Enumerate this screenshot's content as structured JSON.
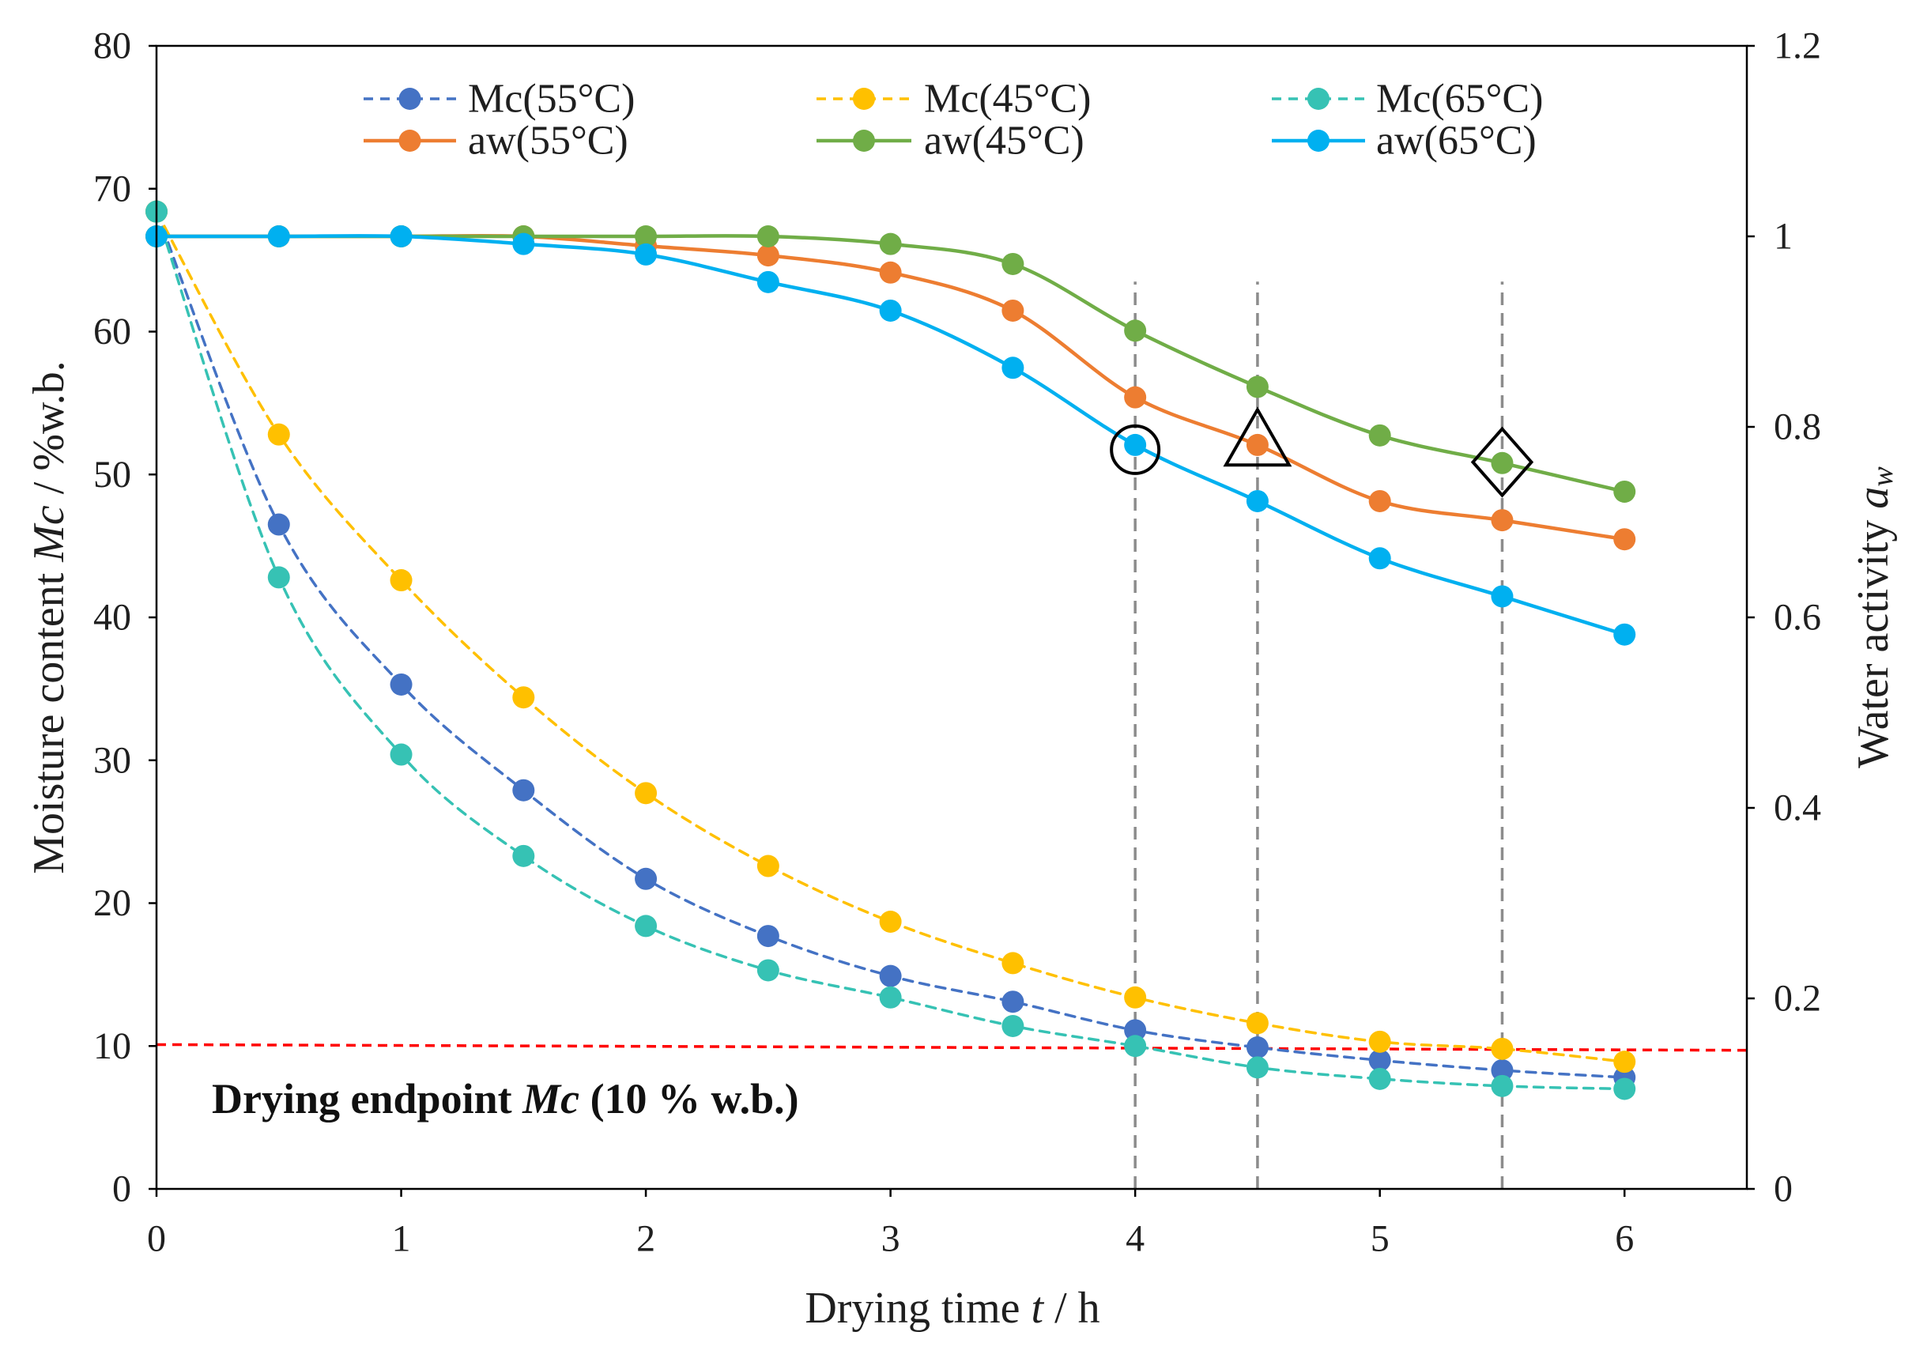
{
  "chart_data": {
    "type": "line",
    "x": [
      0,
      0.5,
      1,
      1.5,
      2,
      2.5,
      3,
      3.5,
      4,
      4.5,
      5,
      5.5,
      6
    ],
    "xlim": [
      0,
      6.5
    ],
    "ylim_left": [
      0,
      80
    ],
    "ylim_right": [
      0,
      1.2
    ],
    "grid": false,
    "legend_position": "top",
    "x_ticks": [
      "0",
      "1",
      "2",
      "3",
      "4",
      "5",
      "6"
    ],
    "y_left_ticks": [
      "0",
      "10",
      "20",
      "30",
      "40",
      "50",
      "60",
      "70",
      "80"
    ],
    "y_right_ticks": [
      "0",
      "0.2",
      "0.4",
      "0.6",
      "0.8",
      "1",
      "1.2"
    ],
    "xlabel": {
      "text": "Drying time ",
      "var": "t",
      "unit": " / h"
    },
    "ylabel_left": {
      "text": "Moisture content ",
      "var": "Mc",
      "unit": " / %w.b."
    },
    "ylabel_right": {
      "text": "Water activity ",
      "var": "a",
      "sub": "w"
    },
    "series": [
      {
        "name": "Mc(55°C)",
        "axis": "left",
        "line": "dashed",
        "color": "#4472C4",
        "values": [
          68.4,
          46.5,
          35.3,
          27.9,
          21.7,
          17.7,
          14.9,
          13.1,
          11.1,
          9.9,
          9.0,
          8.3,
          7.8
        ]
      },
      {
        "name": "Mc(45°C)",
        "axis": "left",
        "line": "dashed",
        "color": "#FFC000",
        "values": [
          68.4,
          52.8,
          42.6,
          34.4,
          27.7,
          22.6,
          18.7,
          15.8,
          13.4,
          11.6,
          10.3,
          9.8,
          8.9
        ]
      },
      {
        "name": "Mc(65°C)",
        "axis": "left",
        "line": "dashed",
        "color": "#36C2B4",
        "values": [
          68.4,
          42.8,
          30.4,
          23.3,
          18.4,
          15.3,
          13.4,
          11.4,
          10.0,
          8.5,
          7.7,
          7.2,
          7.0
        ]
      },
      {
        "name": "aw(55°C)",
        "axis": "right",
        "line": "solid",
        "color": "#ED7D31",
        "values": [
          1.0,
          1.0,
          1.0,
          1.0,
          0.99,
          0.98,
          0.962,
          0.922,
          0.831,
          0.781,
          0.722,
          0.702,
          0.682
        ]
      },
      {
        "name": "aw(45°C)",
        "axis": "right",
        "line": "solid",
        "color": "#70AD47",
        "values": [
          1.0,
          1.0,
          1.0,
          1.0,
          1.0,
          1.0,
          0.992,
          0.971,
          0.901,
          0.842,
          0.791,
          0.762,
          0.732
        ]
      },
      {
        "name": "aw(65°C)",
        "axis": "right",
        "line": "solid",
        "color": "#00B0F0",
        "values": [
          1.0,
          1.0,
          1.0,
          0.992,
          0.981,
          0.952,
          0.922,
          0.862,
          0.781,
          0.722,
          0.662,
          0.622,
          0.582
        ]
      }
    ],
    "endpoint_line": {
      "y_start": 10.1,
      "y_end": 9.7,
      "color": "#FF0000",
      "label": {
        "text": "Drying endpoint ",
        "var": "Mc",
        "unit": " (10 % w.b.)"
      }
    },
    "reference_lines_x": [
      4,
      4.5,
      5.5
    ],
    "reference_line_top": 63.5,
    "reference_line_color": "#8C8C8C",
    "highlight_markers": [
      {
        "shape": "circle",
        "x": 4,
        "y": 0.776,
        "axis": "right"
      },
      {
        "shape": "triangle",
        "x": 4.5,
        "y": 0.789,
        "axis": "right"
      },
      {
        "shape": "diamond",
        "x": 5.5,
        "y": 0.763,
        "axis": "right"
      }
    ]
  }
}
